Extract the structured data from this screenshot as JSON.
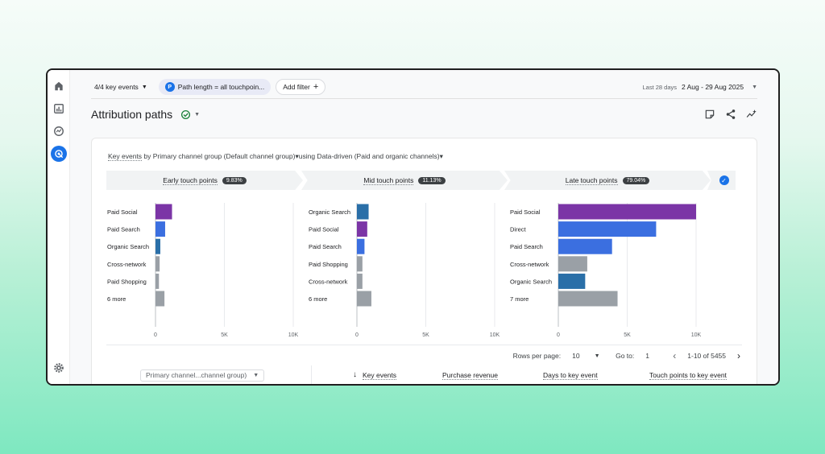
{
  "toolbar": {
    "key_events_label": "4/4 key events",
    "path_badge": "P",
    "path_filter_label": "Path length = all touchpoin...",
    "add_filter_label": "Add filter",
    "date_prefix": "Last 28 days",
    "date_range": "2 Aug - 29 Aug 2025"
  },
  "header": {
    "title": "Attribution paths"
  },
  "subtitle": {
    "part1": "Key events",
    "part2": " by Primary channel group (Default channel group)",
    "part3": "▾using Data-driven (Paid and organic channels)▾"
  },
  "stages": [
    {
      "label": "Early touch points",
      "pct": "9.83%"
    },
    {
      "label": "Mid touch points",
      "pct": "11.13%"
    },
    {
      "label": "Late touch points",
      "pct": "79.04%"
    }
  ],
  "chart_data": [
    {
      "type": "bar",
      "orientation": "horizontal",
      "title": "Early touch points",
      "categories": [
        "Paid Social",
        "Paid Search",
        "Organic Search",
        "Cross-network",
        "Paid Shopping",
        "6 more"
      ],
      "values": [
        1200,
        700,
        350,
        300,
        250,
        650
      ],
      "colors": [
        "#7b35a6",
        "#3b6fe0",
        "#2a6fa8",
        "#9aa0a6",
        "#9aa0a6",
        "#9aa0a6"
      ],
      "xlim": [
        0,
        10000
      ],
      "ticks": [
        "0",
        "5K",
        "10K"
      ]
    },
    {
      "type": "bar",
      "orientation": "horizontal",
      "title": "Mid touch points",
      "categories": [
        "Organic Search",
        "Paid Social",
        "Paid Search",
        "Paid Shopping",
        "Cross-network",
        "6 more"
      ],
      "values": [
        850,
        750,
        550,
        400,
        400,
        1050
      ],
      "colors": [
        "#2a6fa8",
        "#7b35a6",
        "#3b6fe0",
        "#9aa0a6",
        "#9aa0a6",
        "#9aa0a6"
      ],
      "xlim": [
        0,
        10000
      ],
      "ticks": [
        "0",
        "5K",
        "10K"
      ]
    },
    {
      "type": "bar",
      "orientation": "horizontal",
      "title": "Late touch points",
      "categories": [
        "Paid Social",
        "Direct",
        "Paid Search",
        "Cross-network",
        "Organic Search",
        "7 more"
      ],
      "values": [
        10000,
        7100,
        3900,
        2100,
        1950,
        4300
      ],
      "colors": [
        "#7b35a6",
        "#3b6fe0",
        "#3b6fe0",
        "#9aa0a6",
        "#2a6fa8",
        "#9aa0a6"
      ],
      "xlim": [
        0,
        10000
      ],
      "ticks": [
        "0",
        "5K",
        "10K"
      ]
    }
  ],
  "pager": {
    "rows_label": "Rows per page:",
    "rows_value": "10",
    "goto_label": "Go to:",
    "goto_value": "1",
    "range": "1-10 of 5455"
  },
  "table": {
    "dimension": "Primary channel...channel group)",
    "metrics": [
      "Key events",
      "Purchase revenue",
      "Days to key event",
      "Touch points to key event"
    ],
    "sort_arrow": "↓"
  }
}
